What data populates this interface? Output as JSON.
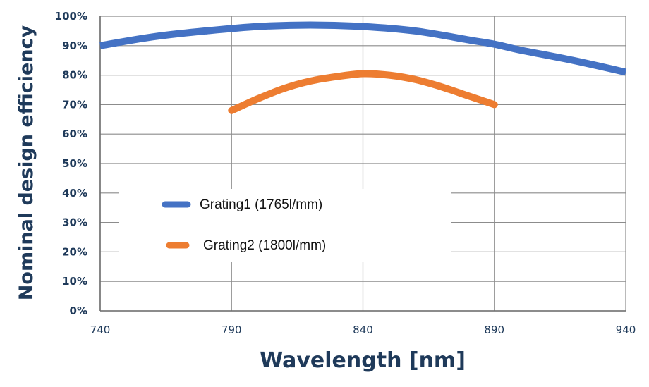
{
  "chart_data": {
    "type": "line",
    "xlabel": "Wavelength [nm]",
    "ylabel": "Nominal design efficiency",
    "xlim": [
      740,
      940
    ],
    "ylim": [
      0,
      100
    ],
    "xticks": [
      740,
      790,
      840,
      890,
      940
    ],
    "yticks": [
      0,
      10,
      20,
      30,
      40,
      50,
      60,
      70,
      80,
      90,
      100
    ],
    "ytick_labels": [
      "0%",
      "10%",
      "20%",
      "30%",
      "40%",
      "50%",
      "60%",
      "70%",
      "80%",
      "90%",
      "100%"
    ],
    "grid": true,
    "legend_position": "center-left",
    "series": [
      {
        "name": "Grating1 (1765l/mm)",
        "color": "#4472C4",
        "x": [
          740,
          760,
          780,
          800,
          820,
          840,
          860,
          880,
          890,
          900,
          920,
          940
        ],
        "y": [
          90,
          93,
          95,
          96.5,
          97,
          96.5,
          95,
          92,
          90.5,
          88.5,
          85,
          81
        ]
      },
      {
        "name": "Grating2 (1800l/mm)",
        "color": "#ED7D31",
        "x": [
          790,
          800,
          810,
          820,
          830,
          840,
          850,
          860,
          870,
          880,
          890
        ],
        "y": [
          68,
          72,
          75.5,
          78,
          79.5,
          80.5,
          80,
          78.5,
          76,
          73,
          70
        ]
      }
    ]
  }
}
